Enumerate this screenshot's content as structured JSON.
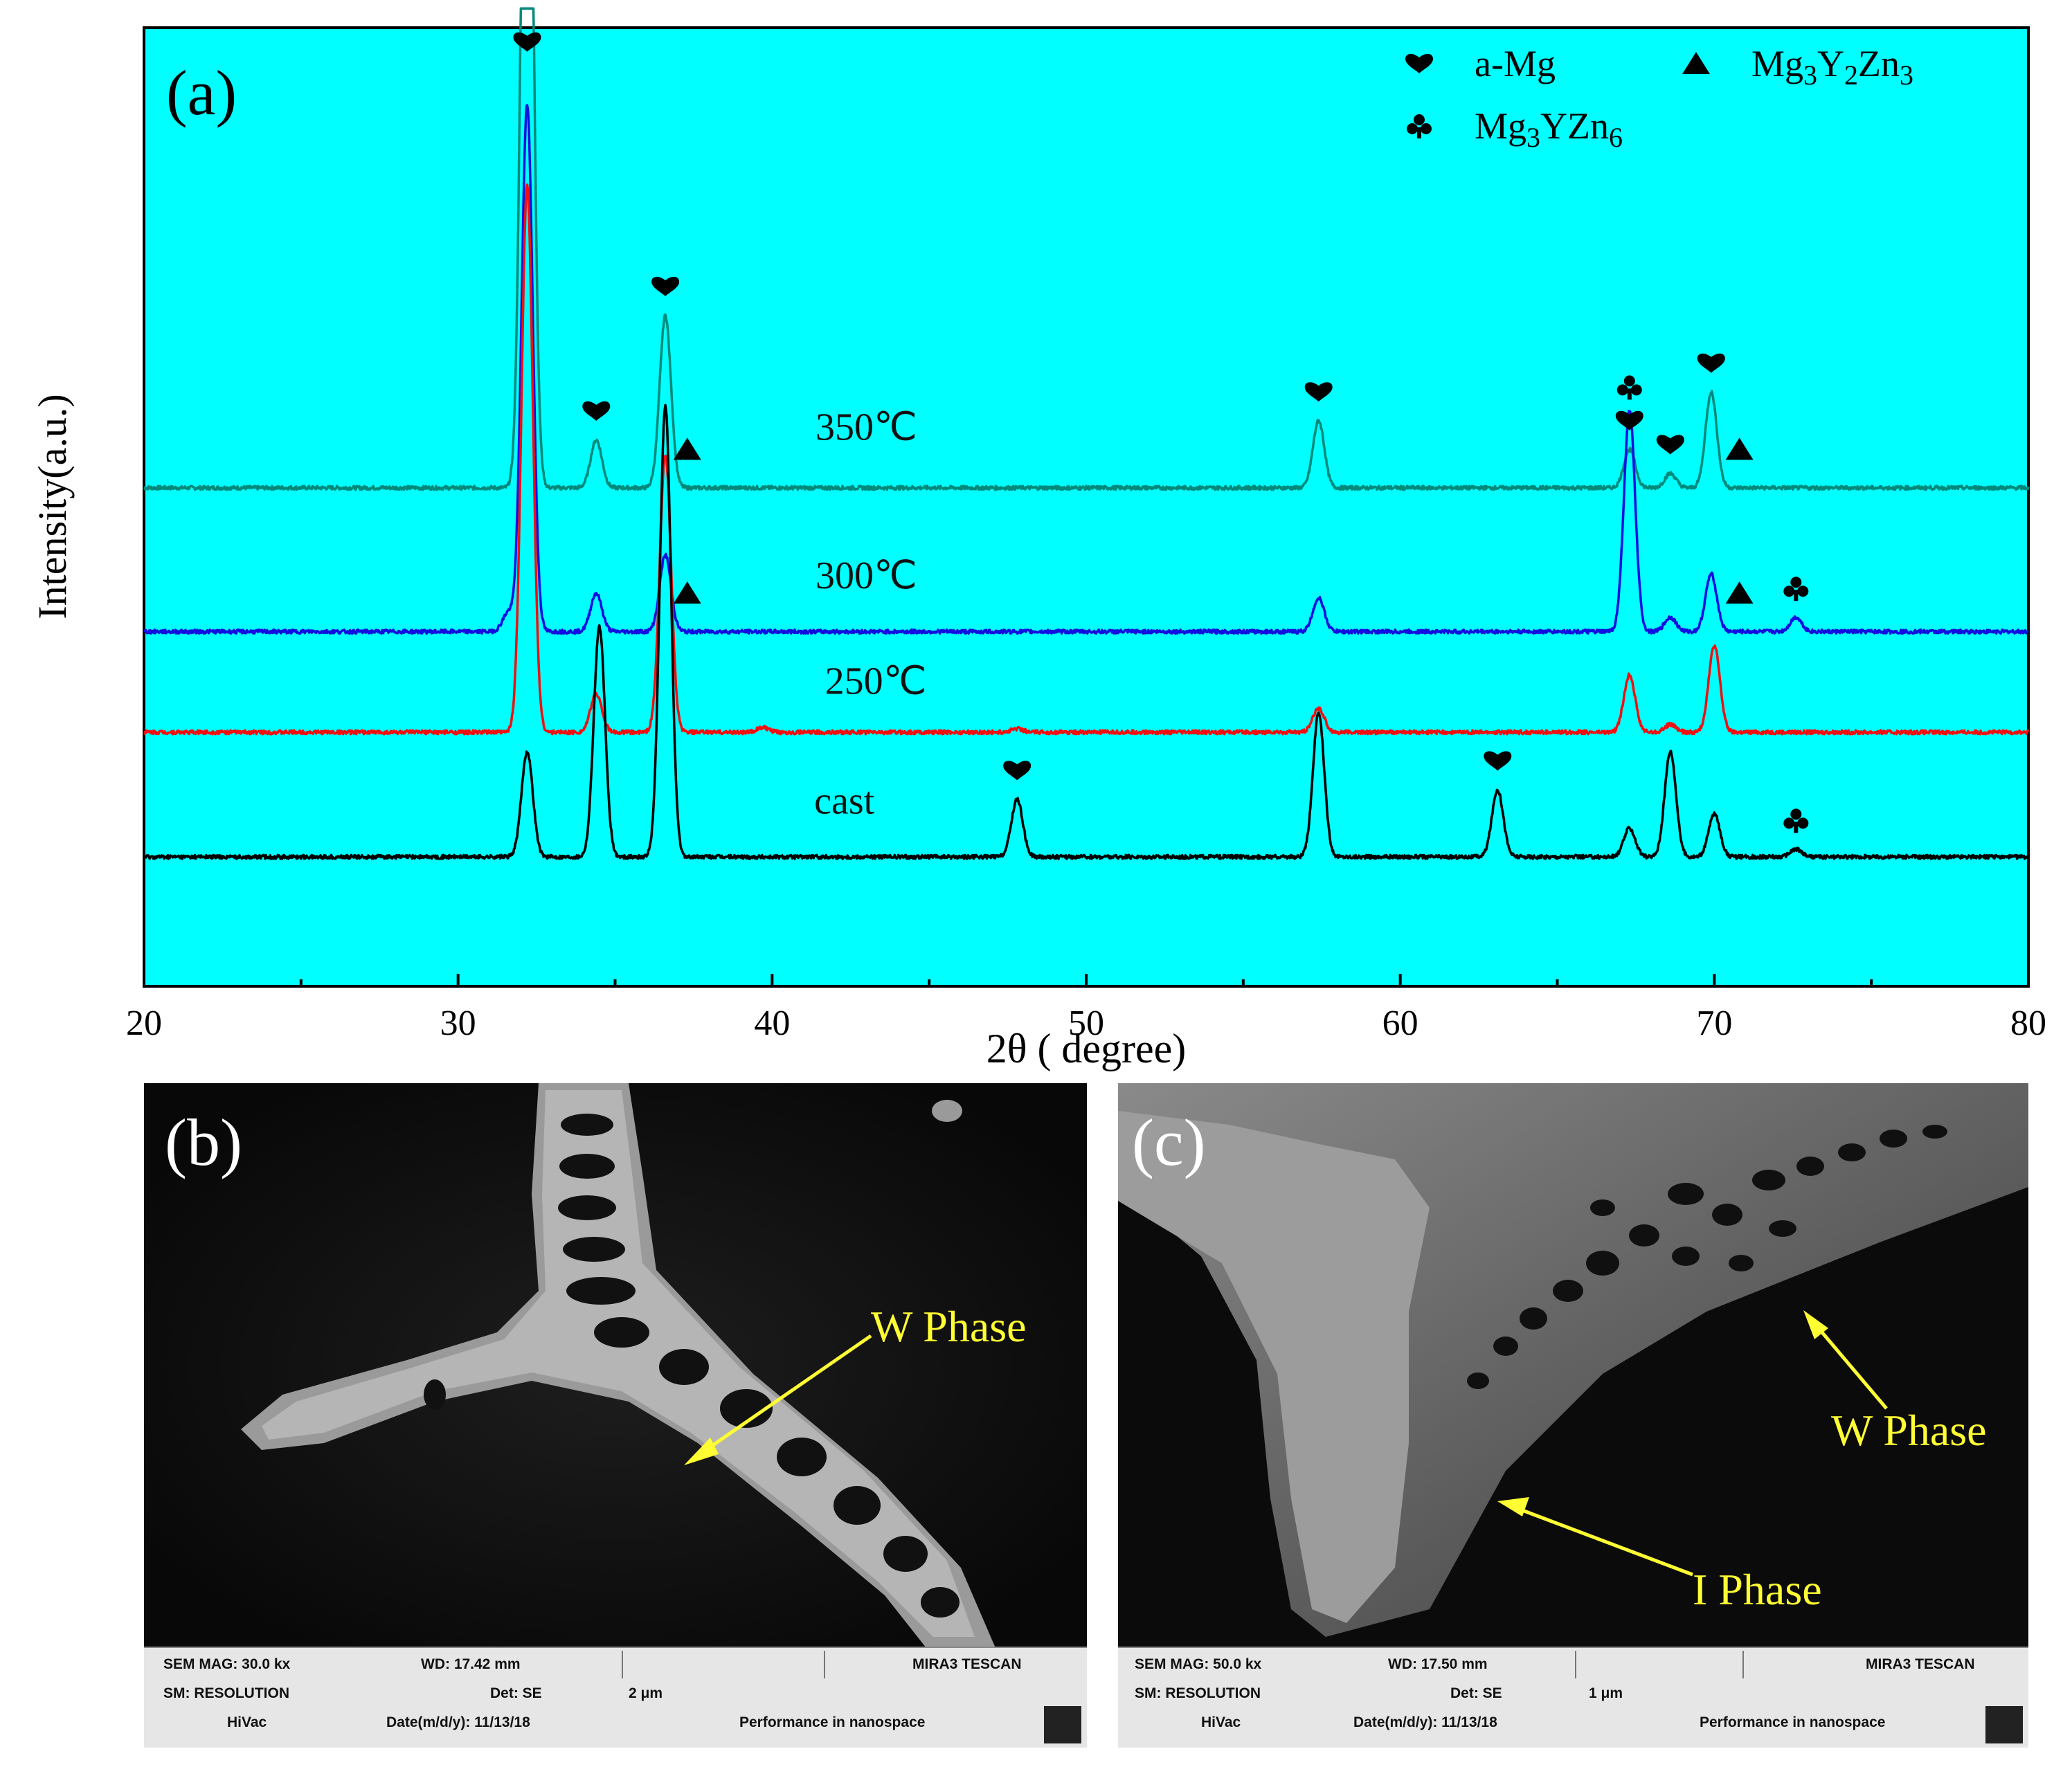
{
  "figure": {
    "panels": [
      "(a)",
      "(b)",
      "(c)"
    ]
  },
  "chart_data": {
    "type": "line",
    "panel_label": "(a)",
    "xlabel": "2θ ( degree)",
    "ylabel": "Intensity(a.u.)",
    "xlim": [
      20,
      80
    ],
    "xticks": [
      "20",
      "30",
      "40",
      "50",
      "60",
      "70",
      "80"
    ],
    "grid": false,
    "background": "#00ffff",
    "legend": {
      "position": "top-right",
      "entries": [
        {
          "symbol": "heart",
          "label": "a-Mg"
        },
        {
          "symbol": "triangle",
          "label": "Mg3Y2Zn3",
          "label_parts": [
            [
              "Mg",
              ""
            ],
            [
              "3",
              "sub"
            ],
            [
              "Y",
              ""
            ],
            [
              "2",
              "sub"
            ],
            [
              "Zn",
              ""
            ],
            [
              "3",
              "sub"
            ]
          ]
        },
        {
          "symbol": "club",
          "label": "Mg3YZn6",
          "label_parts": [
            [
              "Mg",
              ""
            ],
            [
              "3",
              "sub"
            ],
            [
              "YZn",
              ""
            ],
            [
              "6",
              "sub"
            ]
          ]
        }
      ]
    },
    "series": [
      {
        "name": "350℃",
        "color": "#008a7c",
        "baseline": 0.52,
        "peaks": [
          [
            32.2,
            0.97
          ],
          [
            34.4,
            0.05
          ],
          [
            36.6,
            0.18
          ],
          [
            57.4,
            0.07
          ],
          [
            67.3,
            0.04
          ],
          [
            68.6,
            0.015
          ],
          [
            69.9,
            0.1
          ]
        ]
      },
      {
        "name": "300℃",
        "color": "#1010e0",
        "baseline": 0.37,
        "peaks": [
          [
            31.6,
            0.02
          ],
          [
            32.2,
            0.55
          ],
          [
            34.4,
            0.04
          ],
          [
            36.6,
            0.08
          ],
          [
            57.4,
            0.035
          ],
          [
            67.3,
            0.23
          ],
          [
            68.6,
            0.015
          ],
          [
            69.9,
            0.06
          ],
          [
            72.6,
            0.015
          ]
        ]
      },
      {
        "name": "250℃",
        "color": "#f01010",
        "baseline": 0.265,
        "peaks": [
          [
            32.2,
            0.57
          ],
          [
            34.4,
            0.04
          ],
          [
            36.6,
            0.29
          ],
          [
            39.7,
            0.005
          ],
          [
            47.8,
            0.004
          ],
          [
            57.4,
            0.025
          ],
          [
            67.3,
            0.06
          ],
          [
            68.6,
            0.008
          ],
          [
            70.0,
            0.09
          ]
        ]
      },
      {
        "name": "cast",
        "color": "#000000",
        "baseline": 0.135,
        "peaks": [
          [
            32.2,
            0.11
          ],
          [
            34.5,
            0.24
          ],
          [
            36.6,
            0.47
          ],
          [
            47.8,
            0.06
          ],
          [
            57.4,
            0.15
          ],
          [
            63.1,
            0.07
          ],
          [
            67.3,
            0.03
          ],
          [
            68.6,
            0.11
          ],
          [
            70.0,
            0.045
          ],
          [
            72.6,
            0.008
          ]
        ]
      }
    ],
    "phase_markers": [
      {
        "symbol": "heart",
        "series": "350℃",
        "x": 32.2
      },
      {
        "symbol": "heart",
        "series": "350℃",
        "x": 34.4
      },
      {
        "symbol": "heart",
        "series": "350℃",
        "x": 36.6
      },
      {
        "symbol": "triangle",
        "series": "350℃",
        "x": 37.3
      },
      {
        "symbol": "heart",
        "series": "350℃",
        "x": 57.4
      },
      {
        "symbol": "heart",
        "series": "350℃",
        "x": 67.3
      },
      {
        "symbol": "club",
        "series": "350℃",
        "x": 67.3
      },
      {
        "symbol": "heart",
        "series": "350℃",
        "x": 68.6
      },
      {
        "symbol": "heart",
        "series": "350℃",
        "x": 69.9
      },
      {
        "symbol": "triangle",
        "series": "350℃",
        "x": 70.8
      },
      {
        "symbol": "triangle",
        "series": "300℃",
        "x": 37.3
      },
      {
        "symbol": "triangle",
        "series": "300℃",
        "x": 70.8
      },
      {
        "symbol": "club",
        "series": "300℃",
        "x": 72.6
      },
      {
        "symbol": "heart",
        "series": "cast",
        "x": 47.8
      },
      {
        "symbol": "heart",
        "series": "cast",
        "x": 63.1
      },
      {
        "symbol": "club",
        "series": "cast",
        "x": 72.6
      }
    ]
  },
  "sem_b": {
    "panel_label": "(b)",
    "phases": [
      {
        "label": "W Phase"
      }
    ],
    "info": {
      "mag": "SEM MAG: 30.0 kx",
      "wd": "WD: 17.42 mm",
      "resolution": "SM: RESOLUTION",
      "det": "Det: SE",
      "vac": "HiVac",
      "date": "Date(m/d/y): 11/13/18",
      "scale": "2 μm",
      "brand": "MIRA3 TESCAN",
      "slogan": "Performance in nanospace"
    }
  },
  "sem_c": {
    "panel_label": "(c)",
    "phases": [
      {
        "label": "W Phase"
      },
      {
        "label": "I Phase"
      }
    ],
    "info": {
      "mag": "SEM MAG: 50.0 kx",
      "wd": "WD: 17.50 mm",
      "resolution": "SM: RESOLUTION",
      "det": "Det: SE",
      "vac": "HiVac",
      "date": "Date(m/d/y): 11/13/18",
      "scale": "1 μm",
      "brand": "MIRA3 TESCAN",
      "slogan": "Performance in nanospace"
    }
  }
}
